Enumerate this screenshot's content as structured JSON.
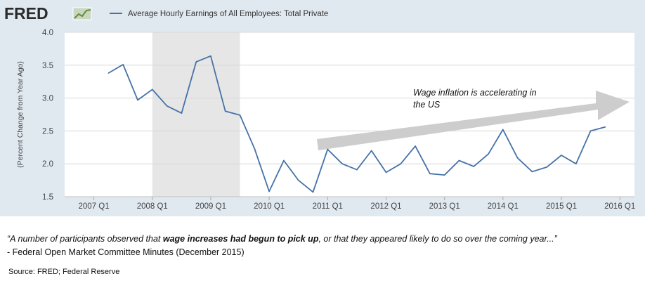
{
  "header": {
    "logo_text": "FRED",
    "logo_icon": "fred-trend-line-icon"
  },
  "chart_data": {
    "type": "line",
    "series": [
      {
        "name": "Average Hourly Earnings of All Employees: Total Private",
        "color": "#4572a7",
        "points": [
          [
            "2007-04",
            3.38
          ],
          [
            "2007-07",
            3.51
          ],
          [
            "2007-10",
            2.97
          ],
          [
            "2008-01",
            3.13
          ],
          [
            "2008-04",
            2.88
          ],
          [
            "2008-07",
            2.77
          ],
          [
            "2008-10",
            3.55
          ],
          [
            "2009-01",
            3.64
          ],
          [
            "2009-04",
            2.8
          ],
          [
            "2009-07",
            2.74
          ],
          [
            "2009-10",
            2.23
          ],
          [
            "2010-01",
            1.58
          ],
          [
            "2010-04",
            2.05
          ],
          [
            "2010-07",
            1.75
          ],
          [
            "2010-10",
            1.57
          ],
          [
            "2011-01",
            2.22
          ],
          [
            "2011-04",
            2.0
          ],
          [
            "2011-07",
            1.91
          ],
          [
            "2011-10",
            2.2
          ],
          [
            "2012-01",
            1.87
          ],
          [
            "2012-04",
            2.0
          ],
          [
            "2012-07",
            2.27
          ],
          [
            "2012-10",
            1.85
          ],
          [
            "2013-01",
            1.83
          ],
          [
            "2013-04",
            2.05
          ],
          [
            "2013-07",
            1.96
          ],
          [
            "2013-10",
            2.15
          ],
          [
            "2014-01",
            2.52
          ],
          [
            "2014-04",
            2.09
          ],
          [
            "2014-07",
            1.88
          ],
          [
            "2014-10",
            1.95
          ],
          [
            "2015-01",
            2.13
          ],
          [
            "2015-04",
            2.0
          ],
          [
            "2015-07",
            2.5
          ],
          [
            "2015-10",
            2.56
          ]
        ]
      }
    ],
    "ylabel": "(Percent Change from Year Ago)",
    "ylim": [
      1.5,
      4.0
    ],
    "yticks": [
      "1.5",
      "2.0",
      "2.5",
      "3.0",
      "3.5",
      "4.0"
    ],
    "xticks": [
      "2007 Q1",
      "2008 Q1",
      "2009 Q1",
      "2010 Q1",
      "2011 Q1",
      "2012 Q1",
      "2013 Q1",
      "2014 Q1",
      "2015 Q1",
      "2016 Q1"
    ],
    "xlim": [
      "2006-07",
      "2016-04"
    ],
    "recession": [
      "2008-01",
      "2009-07"
    ],
    "grid": "horizontal",
    "legend_position": "top-left",
    "annotation": {
      "text_line1": "Wage inflation is accelerating  in",
      "text_line2": "the  US"
    }
  },
  "footer": {
    "quote_part1": "“A number of participants observed that ",
    "quote_bold": "wage increases had begun to pick up",
    "quote_part2": ", or that they appeared likely to do so over the coming year...”",
    "attribution": "- Federal Open Market Committee  Minutes (December  2015)",
    "source": "Source: FRED; Federal Reserve"
  },
  "colors": {
    "panel_bg": "#e1e9f0",
    "plot_bg": "#ffffff",
    "line": "#4572a7",
    "recession": "#e6e6e6",
    "arrow": "#cdcdcd",
    "logo": "#2b2b2b"
  }
}
